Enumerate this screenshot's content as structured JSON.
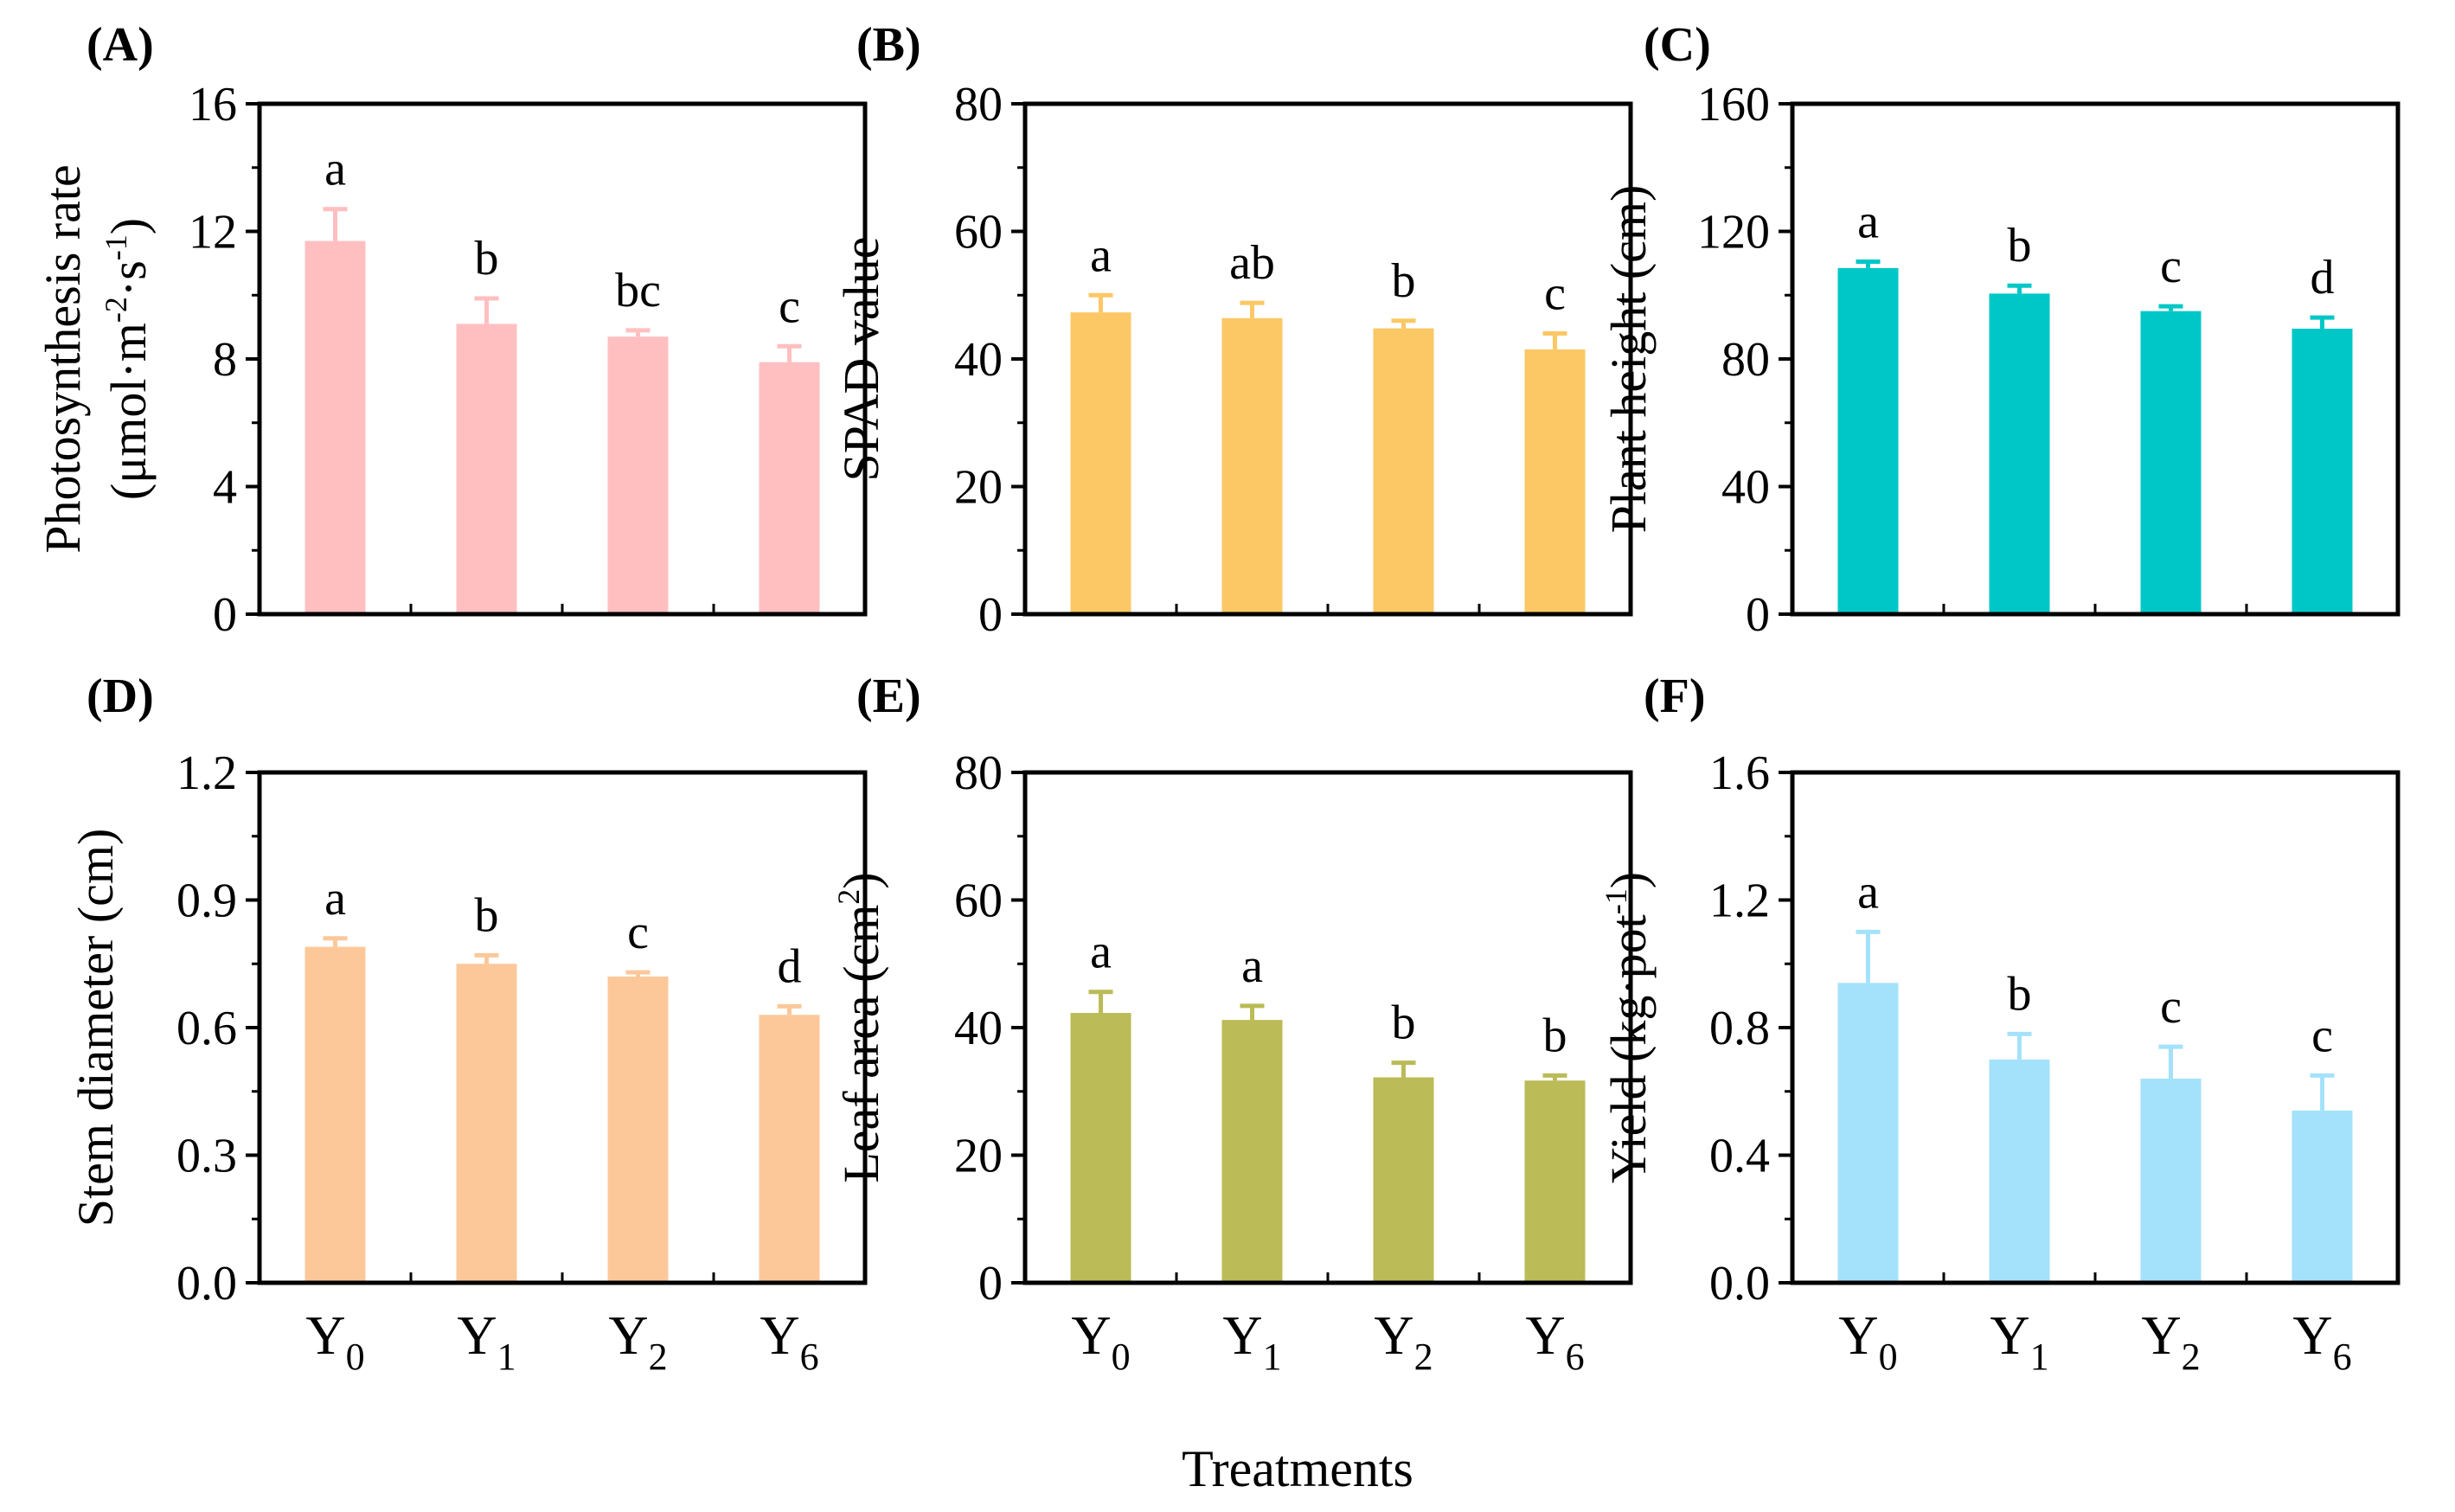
{
  "figure": {
    "xlabel": "Treatments",
    "category_main": [
      "Y",
      "Y",
      "Y",
      "Y"
    ],
    "category_sub": [
      "0",
      "1",
      "2",
      "6"
    ]
  },
  "chart_data": [
    {
      "type": "bar",
      "panel_label": "(A)",
      "categories": [
        "Y0",
        "Y1",
        "Y2",
        "Y6"
      ],
      "values": [
        11.7,
        9.1,
        8.7,
        7.9
      ],
      "errors": [
        1.0,
        0.8,
        0.2,
        0.5
      ],
      "significance": [
        "a",
        "b",
        "bc",
        "c"
      ],
      "ylabel_line1": "Photosynthesis rate",
      "ylabel_line2_parts": [
        "(μmol·m",
        "-2",
        "·s",
        "-1",
        ")"
      ],
      "ylim": [
        0,
        16
      ],
      "yticks": [
        0,
        4,
        8,
        12,
        16
      ],
      "ytick_labels": [
        "0",
        "4",
        "8",
        "12",
        "16"
      ],
      "color": "#ffbfc0"
    },
    {
      "type": "bar",
      "panel_label": "(B)",
      "categories": [
        "Y0",
        "Y1",
        "Y2",
        "Y6"
      ],
      "values": [
        47.3,
        46.4,
        44.8,
        41.5
      ],
      "errors": [
        2.7,
        2.4,
        1.2,
        2.5
      ],
      "significance": [
        "a",
        "ab",
        "b",
        "c"
      ],
      "ylabel": "SPAD value",
      "ylim": [
        0,
        80
      ],
      "yticks": [
        0,
        20,
        40,
        60,
        80
      ],
      "ytick_labels": [
        "0",
        "20",
        "40",
        "60",
        "80"
      ],
      "color": "#fbc865"
    },
    {
      "type": "bar",
      "panel_label": "(C)",
      "categories": [
        "Y0",
        "Y1",
        "Y2",
        "Y6"
      ],
      "values": [
        108.5,
        100.5,
        95.0,
        89.5
      ],
      "errors": [
        2.0,
        2.5,
        1.5,
        3.5
      ],
      "significance": [
        "a",
        "b",
        "c",
        "d"
      ],
      "ylabel": "Plant height (cm)",
      "ylim": [
        0,
        160
      ],
      "yticks": [
        0,
        40,
        80,
        120,
        160
      ],
      "ytick_labels": [
        "0",
        "40",
        "80",
        "120",
        "160"
      ],
      "color": "#00c7c7"
    },
    {
      "type": "bar",
      "panel_label": "(D)",
      "categories": [
        "Y0",
        "Y1",
        "Y2",
        "Y6"
      ],
      "values": [
        0.79,
        0.75,
        0.72,
        0.63
      ],
      "errors": [
        0.02,
        0.02,
        0.01,
        0.02
      ],
      "significance": [
        "a",
        "b",
        "c",
        "d"
      ],
      "ylabel": "Stem diameter (cm)",
      "ylim": [
        0,
        1.2
      ],
      "yticks": [
        0,
        0.3,
        0.6,
        0.9,
        1.2
      ],
      "ytick_labels": [
        "0.0",
        "0.3",
        "0.6",
        "0.9",
        "1.2"
      ],
      "color": "#fcc89a"
    },
    {
      "type": "bar",
      "panel_label": "(E)",
      "categories": [
        "Y0",
        "Y1",
        "Y2",
        "Y6"
      ],
      "values": [
        42.3,
        41.2,
        32.2,
        31.7
      ],
      "errors": [
        3.3,
        2.2,
        2.3,
        0.8
      ],
      "significance": [
        "a",
        "a",
        "b",
        "b"
      ],
      "ylabel_parts": [
        "Leaf area (cm",
        "2",
        ")"
      ],
      "ylim": [
        0,
        80
      ],
      "yticks": [
        0,
        20,
        40,
        60,
        80
      ],
      "ytick_labels": [
        "0",
        "20",
        "40",
        "60",
        "80"
      ],
      "color": "#bbbb57"
    },
    {
      "type": "bar",
      "panel_label": "(F)",
      "categories": [
        "Y0",
        "Y1",
        "Y2",
        "Y6"
      ],
      "values": [
        0.94,
        0.7,
        0.64,
        0.54
      ],
      "errors": [
        0.16,
        0.08,
        0.1,
        0.11
      ],
      "significance": [
        "a",
        "b",
        "c",
        "c"
      ],
      "ylabel_parts": [
        "Yield (kg·pot",
        "-1",
        ")"
      ],
      "ylim": [
        0,
        1.6
      ],
      "yticks": [
        0,
        0.4,
        0.8,
        1.2,
        1.6
      ],
      "ytick_labels": [
        "0.0",
        "0.4",
        "0.8",
        "1.2",
        "1.6"
      ],
      "color": "#a4e2fb"
    }
  ]
}
